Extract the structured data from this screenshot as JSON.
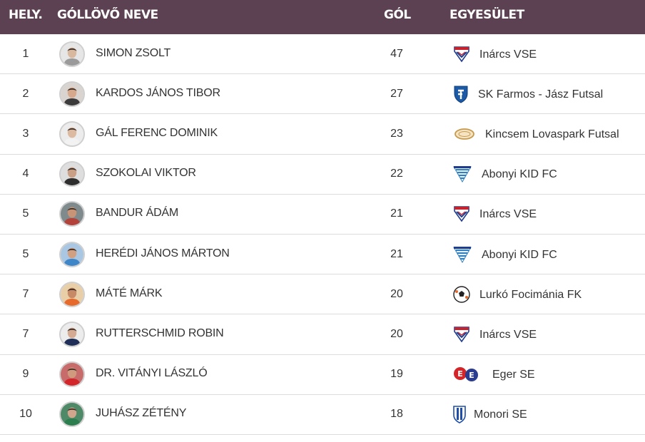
{
  "header": {
    "rank": "HELY.",
    "name": "GÓLLÖVŐ NEVE",
    "goals": "GÓL",
    "club": "EGYESÜLET"
  },
  "colors": {
    "header_bg": "#5b4152",
    "header_text": "#ffffff",
    "row_divider": "#dcdcdc"
  },
  "rows": [
    {
      "rank": "1",
      "name": "SIMON ZSOLT",
      "goals": "47",
      "club": "Inárcs VSE",
      "logo": "inarcs-vse-logo-icon",
      "skin": "#d8b9a0",
      "shirt": "#9a9a9a",
      "bg": "#e6e6e6"
    },
    {
      "rank": "2",
      "name": "KARDOS JÁNOS TIBOR",
      "goals": "27",
      "club": "SK Farmos - Jász Futsal",
      "logo": "sk-farmos-logo-icon",
      "skin": "#d6a98c",
      "shirt": "#3b3b3b",
      "bg": "#d9d4cf"
    },
    {
      "rank": "3",
      "name": "GÁL FERENC DOMINIK",
      "goals": "23",
      "club": "Kincsem Lovaspark Futsal",
      "logo": "kincsem-lovaspark-logo-icon",
      "skin": "#dcb9a1",
      "shirt": "#f2f2f2",
      "bg": "#ececec"
    },
    {
      "rank": "4",
      "name": "SZOKOLAI VIKTOR",
      "goals": "22",
      "club": "Abonyi KID FC",
      "logo": "abonyi-kid-fc-logo-icon",
      "skin": "#c99f85",
      "shirt": "#2e2e2e",
      "bg": "#dedede"
    },
    {
      "rank": "5",
      "name": "BANDUR ÁDÁM",
      "goals": "21",
      "club": "Inárcs VSE",
      "logo": "inarcs-vse-logo-icon",
      "skin": "#c89478",
      "shirt": "#b2423a",
      "bg": "#7f8a8c"
    },
    {
      "rank": "5",
      "name": "HERÉDI JÁNOS MÁRTON",
      "goals": "21",
      "club": "Abonyi KID FC",
      "logo": "abonyi-kid-fc-logo-icon",
      "skin": "#d1a083",
      "shirt": "#3f86c9",
      "bg": "#a9c7e3"
    },
    {
      "rank": "7",
      "name": "MÁTÉ MÁRK",
      "goals": "20",
      "club": "Lurkó Focimánia FK",
      "logo": "lurko-focimania-logo-icon",
      "skin": "#c78a66",
      "shirt": "#e56a2b",
      "bg": "#e9cfa8"
    },
    {
      "rank": "7",
      "name": "RUTTERSCHMID ROBIN",
      "goals": "20",
      "club": "Inárcs VSE",
      "logo": "inarcs-vse-logo-icon",
      "skin": "#d4ab92",
      "shirt": "#1f2f57",
      "bg": "#ececec"
    },
    {
      "rank": "9",
      "name": "DR. VITÁNYI LÁSZLÓ",
      "goals": "19",
      "club": "Eger SE",
      "logo": "eger-se-logo-icon",
      "skin": "#cf9a7e",
      "shirt": "#d3262b",
      "bg": "#c76b6b"
    },
    {
      "rank": "10",
      "name": "JUHÁSZ ZÉTÉNY",
      "goals": "18",
      "club": "Monori SE",
      "logo": "monori-se-logo-icon",
      "skin": "#d2a68c",
      "shirt": "#2d7e4f",
      "bg": "#4f8a68"
    }
  ]
}
